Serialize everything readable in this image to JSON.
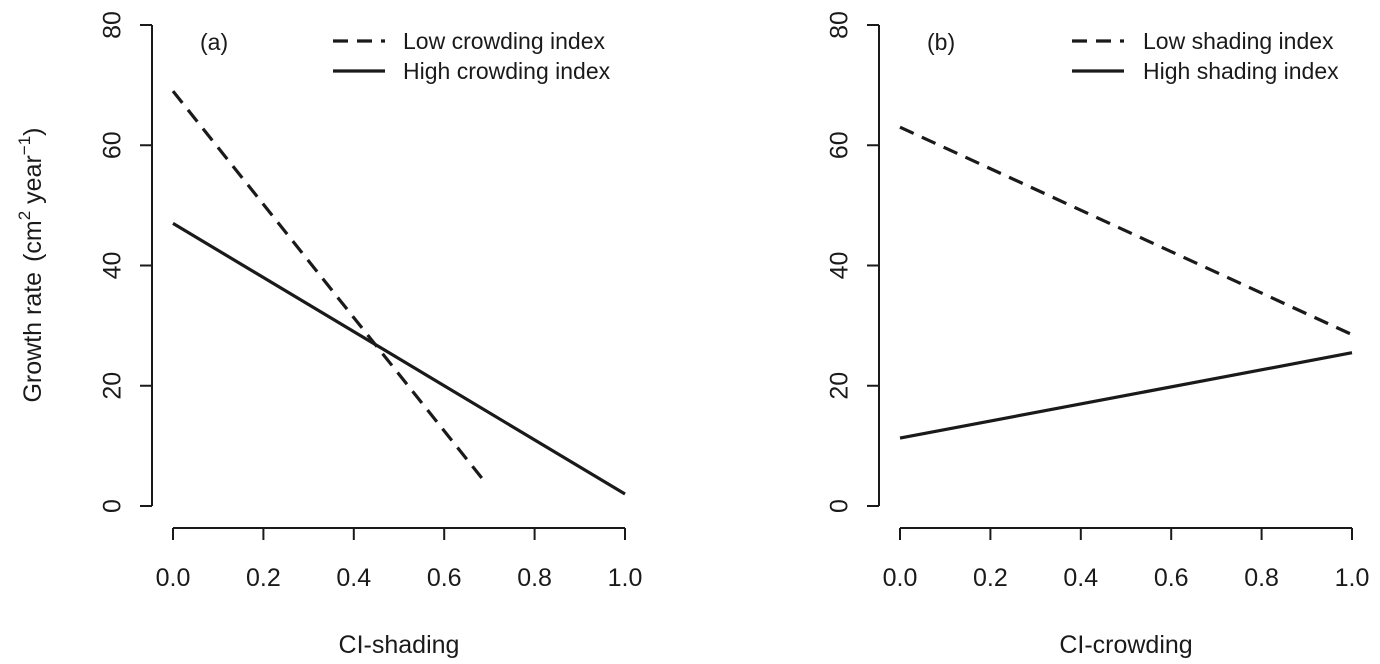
{
  "ylabel_text": "Growth rate",
  "ylabel_unit_open": "(cm",
  "ylabel_unit_sup": "2",
  "ylabel_unit_mid": " year",
  "ylabel_unit_sup2": "−1",
  "ylabel_unit_close": ")",
  "chart_data": [
    {
      "type": "line",
      "panel_label": "(a)",
      "xlabel": "CI-shading",
      "ylabel": "Growth rate (cm2 year−1)",
      "xlim": [
        0,
        1
      ],
      "ylim": [
        0,
        80
      ],
      "xticks": [
        "0.0",
        "0.2",
        "0.4",
        "0.6",
        "0.8",
        "1.0"
      ],
      "yticks": [
        "0",
        "20",
        "40",
        "60",
        "80"
      ],
      "legend_position": "top-right",
      "series": [
        {
          "name": "Low crowding index",
          "style": "dashed",
          "x": [
            0.0,
            0.69
          ],
          "y": [
            69,
            4
          ]
        },
        {
          "name": "High crowding index",
          "style": "solid",
          "x": [
            0.0,
            1.0
          ],
          "y": [
            47,
            2
          ]
        }
      ]
    },
    {
      "type": "line",
      "panel_label": "(b)",
      "xlabel": "CI-crowding",
      "ylabel": "",
      "xlim": [
        0,
        1
      ],
      "ylim": [
        0,
        80
      ],
      "xticks": [
        "0.0",
        "0.2",
        "0.4",
        "0.6",
        "0.8",
        "1.0"
      ],
      "yticks": [
        "0",
        "20",
        "40",
        "60",
        "80"
      ],
      "legend_position": "top-right",
      "series": [
        {
          "name": "Low shading index",
          "style": "dashed",
          "x": [
            0.0,
            1.0
          ],
          "y": [
            63,
            28.5
          ]
        },
        {
          "name": "High shading index",
          "style": "solid",
          "x": [
            0.0,
            1.0
          ],
          "y": [
            11.3,
            25.5
          ]
        }
      ]
    }
  ]
}
